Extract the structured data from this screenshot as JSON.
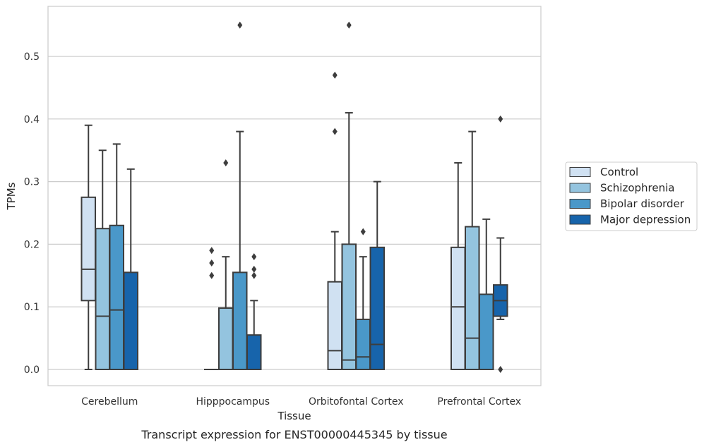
{
  "caption": "Transcript expression for ENST00000445345 by tissue",
  "chart_data": {
    "type": "boxplot",
    "xlabel": "Tissue",
    "ylabel": "TPMs",
    "ylim": [
      -0.027,
      0.578
    ],
    "yticks": [
      "0.0",
      "0.1",
      "0.2",
      "0.3",
      "0.4",
      "0.5"
    ],
    "ytick_values": [
      0.0,
      0.1,
      0.2,
      0.3,
      0.4,
      0.5
    ],
    "grid": true,
    "legend_position": "right",
    "categories": [
      "Cerebellum",
      "Hipppocampus",
      "Orbitofontal Cortex",
      "Prefrontal Cortex"
    ],
    "series": [
      {
        "name": "Control",
        "color": "#d0e1f2",
        "boxes": [
          {
            "whislo": 0.0,
            "q1": 0.11,
            "med": 0.16,
            "q3": 0.275,
            "whishi": 0.39,
            "fliers": []
          },
          {
            "whislo": 0.0,
            "q1": 0.0,
            "med": 0.0,
            "q3": 0.0,
            "whishi": 0.0,
            "fliers": [
              0.15,
              0.17,
              0.19
            ]
          },
          {
            "whislo": 0.0,
            "q1": 0.0,
            "med": 0.03,
            "q3": 0.14,
            "whishi": 0.22,
            "fliers": [
              0.38,
              0.47
            ]
          },
          {
            "whislo": 0.0,
            "q1": 0.0,
            "med": 0.1,
            "q3": 0.195,
            "whishi": 0.33,
            "fliers": []
          }
        ]
      },
      {
        "name": "Schizophrenia",
        "color": "#94c4df",
        "boxes": [
          {
            "whislo": 0.0,
            "q1": 0.0,
            "med": 0.085,
            "q3": 0.225,
            "whishi": 0.35,
            "fliers": []
          },
          {
            "whislo": 0.0,
            "q1": 0.0,
            "med": 0.0,
            "q3": 0.098,
            "whishi": 0.18,
            "fliers": [
              0.33
            ]
          },
          {
            "whislo": 0.0,
            "q1": 0.0,
            "med": 0.015,
            "q3": 0.2,
            "whishi": 0.41,
            "fliers": [
              0.55
            ]
          },
          {
            "whislo": 0.0,
            "q1": 0.0,
            "med": 0.05,
            "q3": 0.228,
            "whishi": 0.38,
            "fliers": []
          }
        ]
      },
      {
        "name": "Bipolar disorder",
        "color": "#4a98c9",
        "boxes": [
          {
            "whislo": 0.0,
            "q1": 0.0,
            "med": 0.095,
            "q3": 0.23,
            "whishi": 0.36,
            "fliers": []
          },
          {
            "whislo": 0.0,
            "q1": 0.0,
            "med": 0.0,
            "q3": 0.155,
            "whishi": 0.38,
            "fliers": [
              0.55
            ]
          },
          {
            "whislo": 0.0,
            "q1": 0.0,
            "med": 0.02,
            "q3": 0.08,
            "whishi": 0.18,
            "fliers": [
              0.22
            ]
          },
          {
            "whislo": 0.0,
            "q1": 0.0,
            "med": 0.0,
            "q3": 0.12,
            "whishi": 0.24,
            "fliers": []
          }
        ]
      },
      {
        "name": "Major depression",
        "color": "#1764ab",
        "boxes": [
          {
            "whislo": 0.0,
            "q1": 0.0,
            "med": 0.0,
            "q3": 0.155,
            "whishi": 0.32,
            "fliers": []
          },
          {
            "whislo": 0.0,
            "q1": 0.0,
            "med": 0.0,
            "q3": 0.055,
            "whishi": 0.11,
            "fliers": [
              0.15,
              0.16,
              0.18
            ]
          },
          {
            "whislo": 0.0,
            "q1": 0.0,
            "med": 0.04,
            "q3": 0.195,
            "whishi": 0.3,
            "fliers": []
          },
          {
            "whislo": 0.08,
            "q1": 0.085,
            "med": 0.11,
            "q3": 0.135,
            "whishi": 0.21,
            "fliers": [
              0.0,
              0.4
            ]
          }
        ]
      }
    ]
  }
}
